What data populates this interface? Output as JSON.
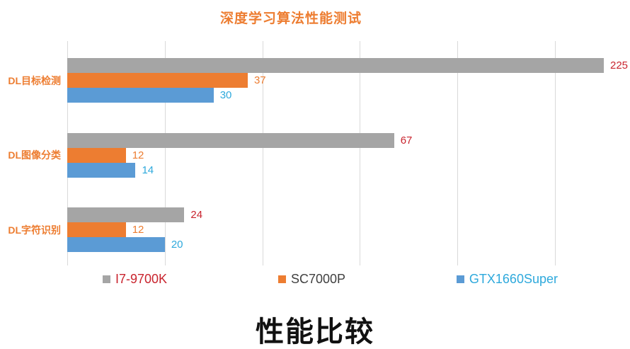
{
  "title": "深度学习算法性能测试",
  "bottom_title": "性能比较",
  "colors": {
    "title": "#ED7D31",
    "gridline": "#D9D9D9",
    "category_label": "#ED7D31",
    "bottom_title": "#111111"
  },
  "chart_data": {
    "type": "bar",
    "orientation": "horizontal",
    "title": "深度学习算法性能测试",
    "subtitle": "性能比较",
    "categories": [
      "DL目标检测",
      "DL图像分类",
      "DL字符识别"
    ],
    "series": [
      {
        "name": "I7-9700K",
        "color": "#A5A5A5",
        "label_color": "#C9242E",
        "legend_text_color": "#C9242E",
        "values": [
          225,
          67,
          24
        ]
      },
      {
        "name": "SC7000P",
        "color": "#ED7D31",
        "label_color": "#ED7D31",
        "legend_text_color": "#404040",
        "values": [
          37,
          12,
          12
        ]
      },
      {
        "name": "GTX1660Super",
        "color": "#5B9BD5",
        "label_color": "#2EA9DC",
        "legend_text_color": "#2EA9DC",
        "values": [
          30,
          14,
          20
        ]
      }
    ],
    "xlim": [
      0,
      110
    ],
    "gridline_step": 20,
    "grid": true,
    "axis_tick_labels_visible": false,
    "data_labels_visible": true,
    "legend_position": "bottom",
    "note": "first gray bar (225) overflows the axis maximum and is clipped at the plot edge"
  }
}
